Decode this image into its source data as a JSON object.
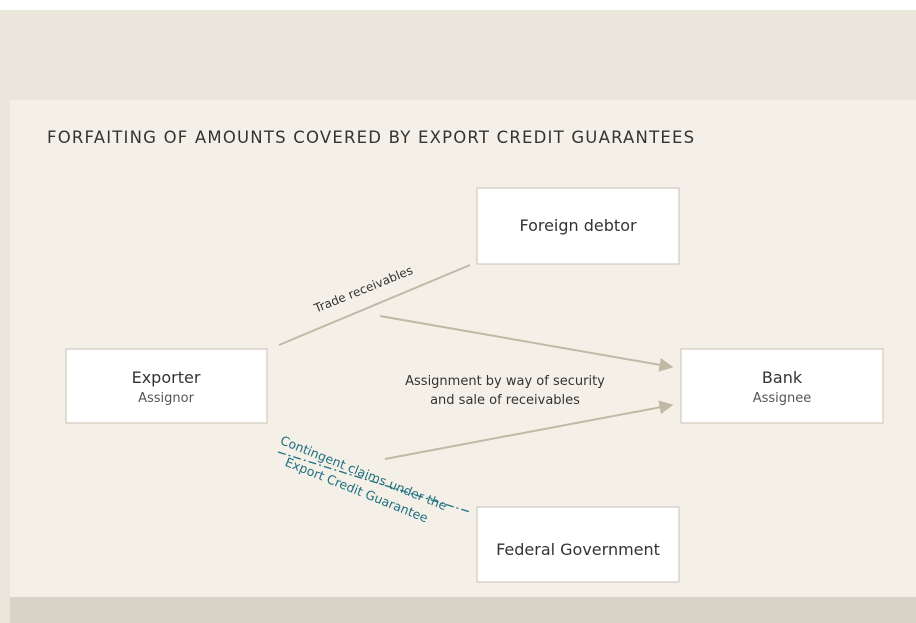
{
  "title": "FORFAITING OF AMOUNTS COVERED BY EXPORT CREDIT GUARANTEES",
  "nodes": [
    {
      "label": "Foreign debtor"
    },
    {
      "label": "Exporter",
      "sublabel": "Assignor"
    },
    {
      "label": "Bank",
      "sublabel": "Assignee"
    },
    {
      "label": "Federal Government"
    }
  ],
  "edges": [
    {
      "label": "Trade receivables"
    },
    {
      "label": [
        "Assignment by way of security",
        "and sale of receivables"
      ]
    },
    {
      "label": [
        "Contingent claims under the",
        "Export Credit Guarantee"
      ]
    }
  ]
}
